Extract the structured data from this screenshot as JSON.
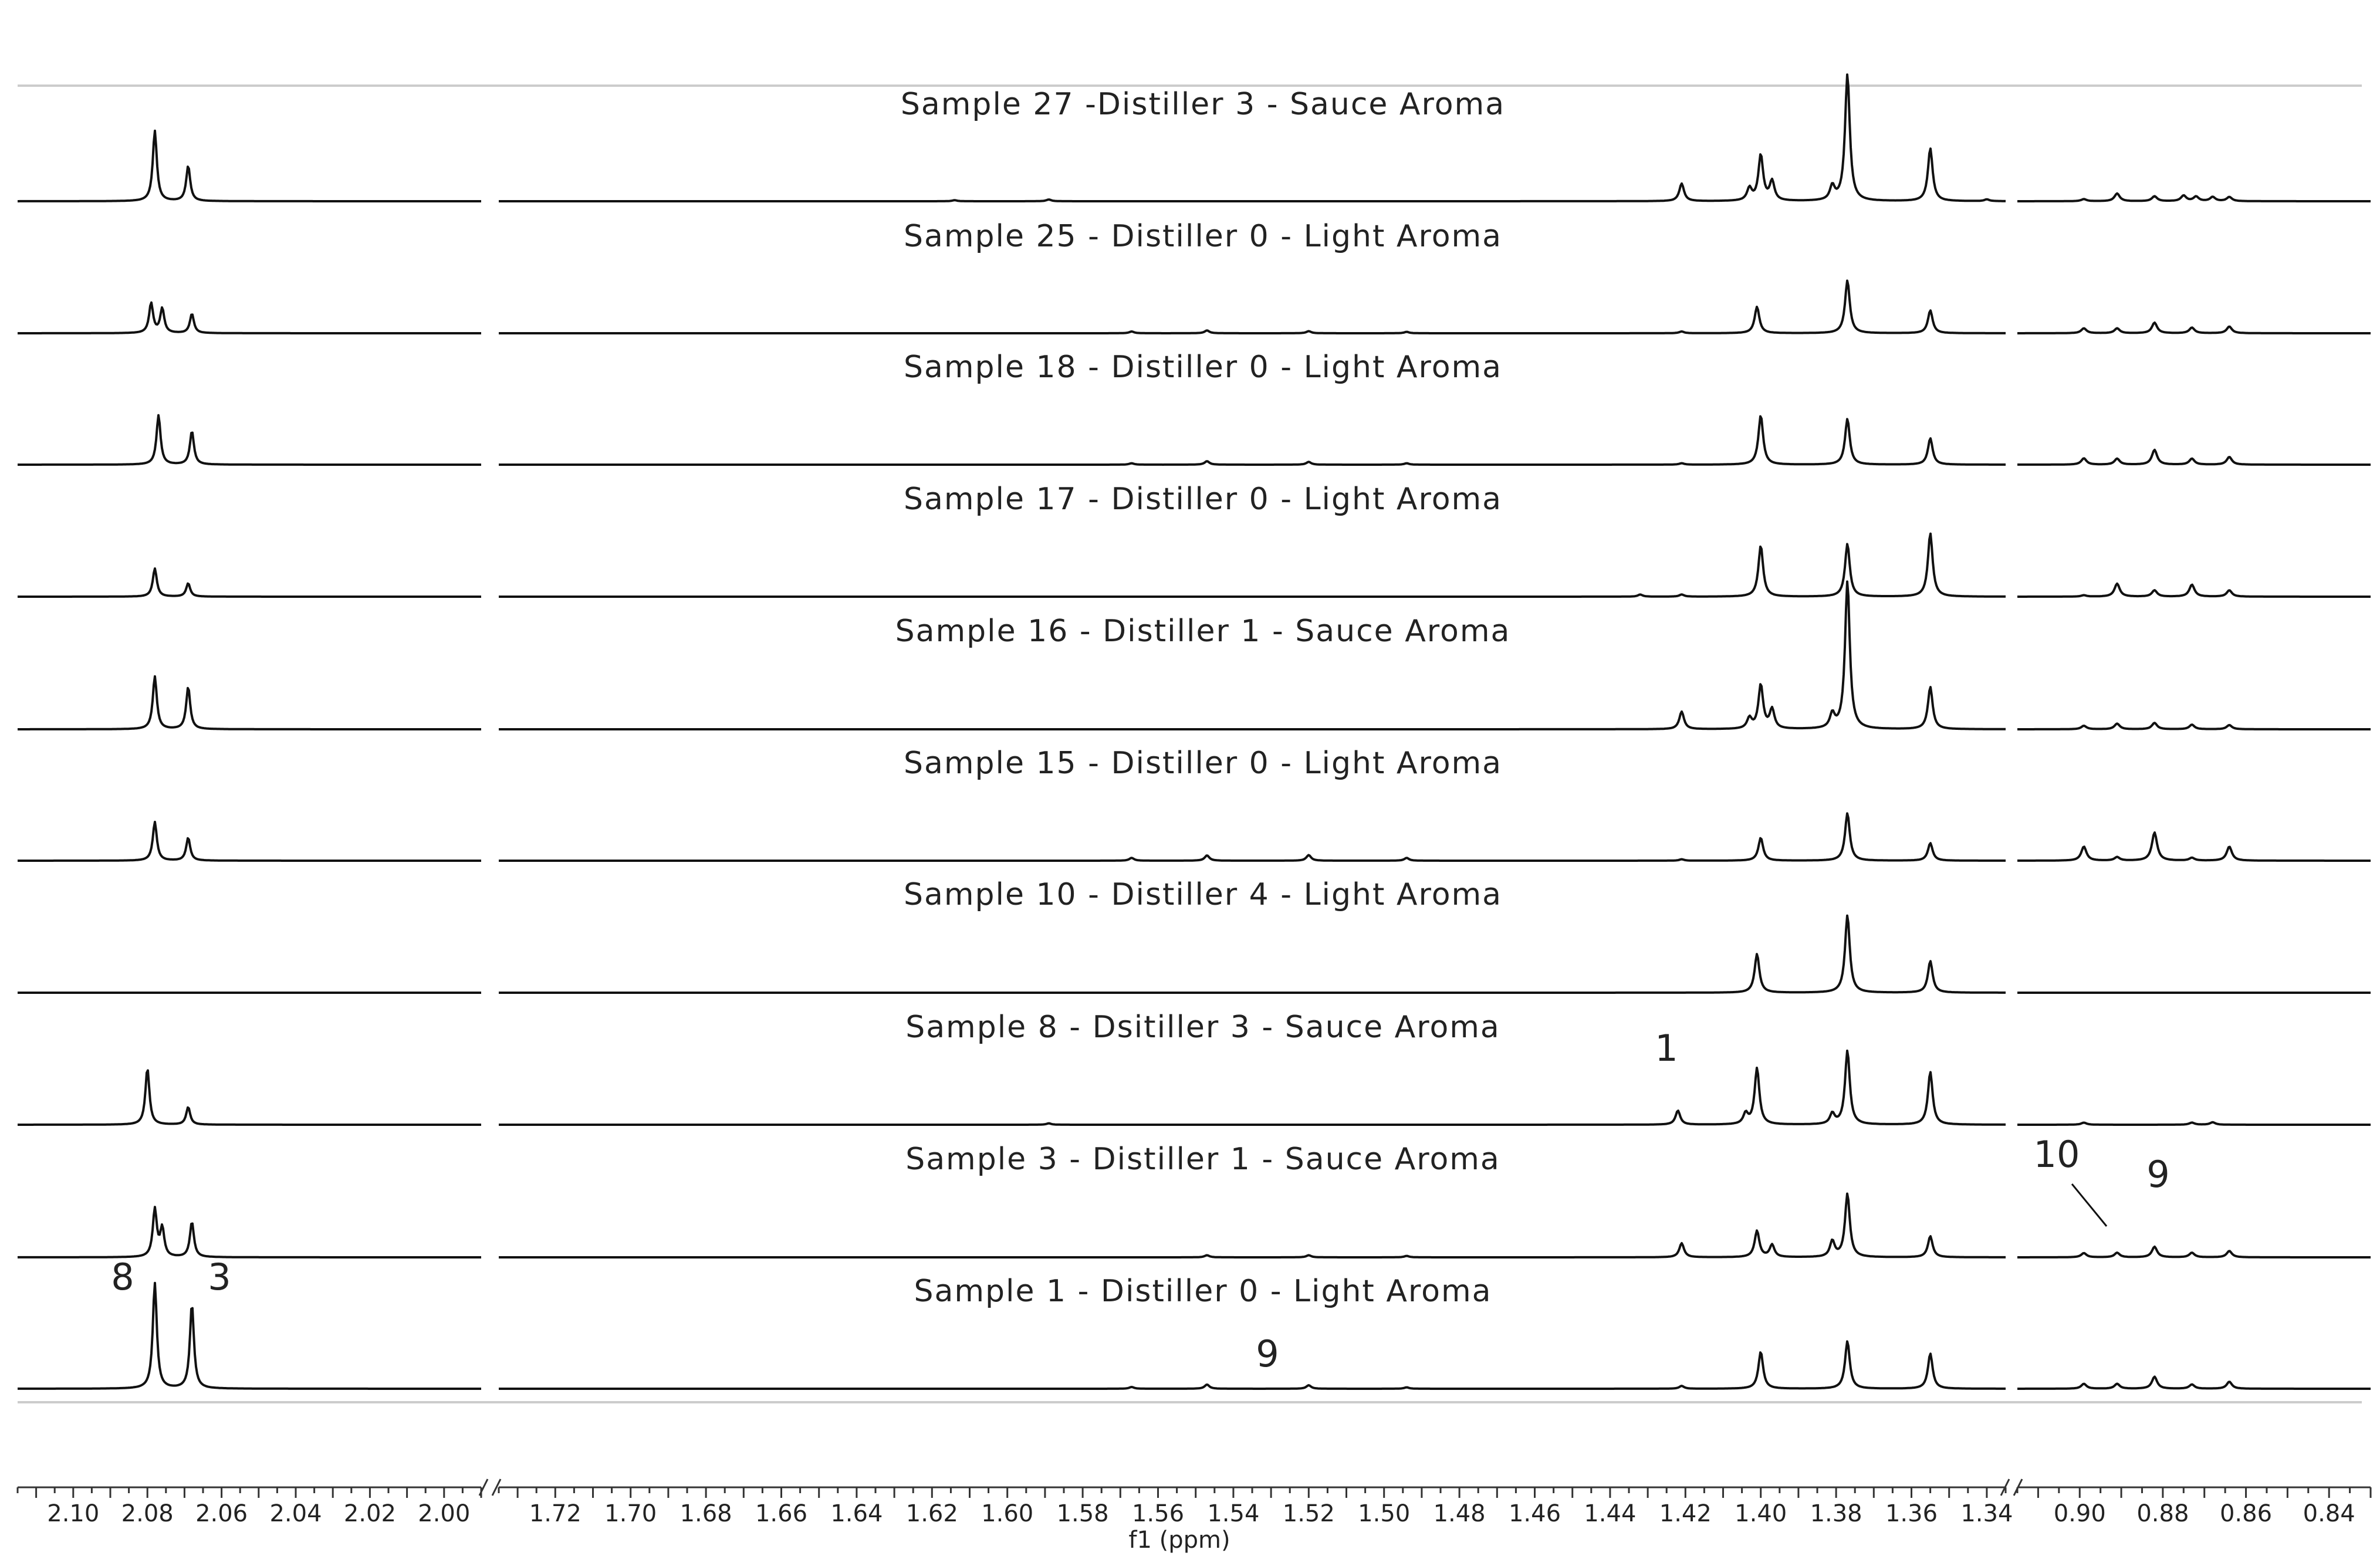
{
  "chart_data": {
    "type": "line",
    "title": "",
    "xlabel": "f1 (ppm)",
    "ylabel": "",
    "x_axis_direction": "descending",
    "axis_breaks": [
      [
        1.99,
        1.73
      ],
      [
        1.335,
        0.915
      ]
    ],
    "segments": [
      {
        "name": "left",
        "x_range": [
          2.115,
          1.99
        ],
        "ticks": [
          "2.10",
          "2.08",
          "2.06",
          "2.04",
          "2.02",
          "2.00"
        ]
      },
      {
        "name": "middle",
        "x_range": [
          1.735,
          1.335
        ],
        "ticks": [
          "1.72",
          "1.70",
          "1.68",
          "1.66",
          "1.64",
          "1.62",
          "1.60",
          "1.58",
          "1.56",
          "1.54",
          "1.52",
          "1.50",
          "1.48",
          "1.46",
          "1.44",
          "1.42",
          "1.40",
          "1.38",
          "1.36",
          "1.34"
        ]
      },
      {
        "name": "right",
        "x_range": [
          0.915,
          0.83
        ],
        "ticks": [
          "0.90",
          "0.88",
          "0.86",
          "0.84"
        ]
      }
    ],
    "series": [
      {
        "name": "Sample 27 -Distiller 3 - Sauce Aroma",
        "peaks": [
          [
            2.078,
            2.0
          ],
          [
            2.069,
            1.0
          ],
          [
            1.421,
            0.5
          ],
          [
            1.403,
            0.35
          ],
          [
            1.4,
            1.3
          ],
          [
            1.397,
            0.55
          ],
          [
            1.381,
            0.4
          ],
          [
            1.377,
            3.6
          ],
          [
            1.355,
            1.5
          ],
          [
            1.614,
            0.03
          ],
          [
            1.589,
            0.05
          ],
          [
            1.34,
            0.05
          ],
          [
            0.899,
            0.06
          ],
          [
            0.891,
            0.22
          ],
          [
            0.882,
            0.14
          ],
          [
            0.875,
            0.16
          ],
          [
            0.872,
            0.13
          ],
          [
            0.868,
            0.12
          ],
          [
            0.864,
            0.12
          ]
        ]
      },
      {
        "name": "Sample 25 - Distiller 0 - Light Aroma",
        "peaks": [
          [
            2.079,
            0.85
          ],
          [
            2.076,
            0.7
          ],
          [
            2.068,
            0.55
          ],
          [
            1.567,
            0.05
          ],
          [
            1.547,
            0.08
          ],
          [
            1.52,
            0.06
          ],
          [
            1.494,
            0.04
          ],
          [
            1.421,
            0.05
          ],
          [
            1.401,
            0.75
          ],
          [
            1.377,
            1.5
          ],
          [
            1.355,
            0.65
          ],
          [
            0.899,
            0.14
          ],
          [
            0.891,
            0.14
          ],
          [
            0.882,
            0.3
          ],
          [
            0.873,
            0.16
          ],
          [
            0.864,
            0.19
          ]
        ]
      },
      {
        "name": "Sample 18 - Distiller 0 - Light Aroma",
        "peaks": [
          [
            2.077,
            1.4
          ],
          [
            2.068,
            0.95
          ],
          [
            1.567,
            0.04
          ],
          [
            1.547,
            0.1
          ],
          [
            1.52,
            0.08
          ],
          [
            1.494,
            0.04
          ],
          [
            1.421,
            0.04
          ],
          [
            1.4,
            1.4
          ],
          [
            1.377,
            1.3
          ],
          [
            1.355,
            0.75
          ],
          [
            0.899,
            0.18
          ],
          [
            0.891,
            0.17
          ],
          [
            0.882,
            0.42
          ],
          [
            0.873,
            0.17
          ],
          [
            0.864,
            0.22
          ]
        ]
      },
      {
        "name": "Sample 17 - Distiller 0 - Light Aroma",
        "peaks": [
          [
            2.078,
            0.8
          ],
          [
            2.069,
            0.38
          ],
          [
            1.432,
            0.06
          ],
          [
            1.421,
            0.06
          ],
          [
            1.4,
            1.45
          ],
          [
            1.377,
            1.5
          ],
          [
            1.355,
            1.8
          ],
          [
            0.899,
            0.04
          ],
          [
            0.891,
            0.37
          ],
          [
            0.882,
            0.18
          ],
          [
            0.873,
            0.34
          ],
          [
            0.864,
            0.18
          ]
        ]
      },
      {
        "name": "Sample 16 - Distiller 1 - Sauce Aroma",
        "peaks": [
          [
            2.078,
            1.5
          ],
          [
            2.069,
            1.2
          ],
          [
            1.421,
            0.5
          ],
          [
            1.403,
            0.3
          ],
          [
            1.4,
            1.25
          ],
          [
            1.397,
            0.55
          ],
          [
            1.381,
            0.4
          ],
          [
            1.377,
            4.2
          ],
          [
            1.355,
            1.2
          ],
          [
            0.899,
            0.1
          ],
          [
            0.891,
            0.16
          ],
          [
            0.882,
            0.18
          ],
          [
            0.873,
            0.13
          ],
          [
            0.864,
            0.12
          ]
        ]
      },
      {
        "name": "Sample 15 - Distiller 0 - Light Aroma",
        "peaks": [
          [
            2.078,
            1.1
          ],
          [
            2.069,
            0.65
          ],
          [
            1.567,
            0.08
          ],
          [
            1.547,
            0.15
          ],
          [
            1.52,
            0.16
          ],
          [
            1.494,
            0.08
          ],
          [
            1.421,
            0.04
          ],
          [
            1.4,
            0.65
          ],
          [
            1.377,
            1.35
          ],
          [
            1.355,
            0.5
          ],
          [
            0.899,
            0.4
          ],
          [
            0.891,
            0.1
          ],
          [
            0.882,
            0.8
          ],
          [
            0.873,
            0.08
          ],
          [
            0.864,
            0.4
          ]
        ]
      },
      {
        "name": "Sample 10 - Distiller 4 - Light Aroma",
        "peaks": [
          [
            1.401,
            1.1
          ],
          [
            1.377,
            2.2
          ],
          [
            1.355,
            0.9
          ]
        ]
      },
      {
        "name": "Sample 8 - Dsitiller 3 - Sauce Aroma",
        "peaks": [
          [
            2.08,
            1.6
          ],
          [
            2.069,
            0.5
          ],
          [
            1.422,
            0.4
          ],
          [
            1.404,
            0.3
          ],
          [
            1.401,
            1.6
          ],
          [
            1.381,
            0.3
          ],
          [
            1.377,
            2.1
          ],
          [
            1.355,
            1.5
          ],
          [
            1.589,
            0.04
          ],
          [
            0.899,
            0.06
          ],
          [
            0.873,
            0.06
          ],
          [
            0.868,
            0.07
          ]
        ]
      },
      {
        "name": "Sample 3 - Distiller 1 - Sauce Aroma",
        "peaks": [
          [
            2.078,
            1.35
          ],
          [
            2.076,
            0.8
          ],
          [
            2.068,
            1.0
          ],
          [
            1.547,
            0.06
          ],
          [
            1.52,
            0.06
          ],
          [
            1.494,
            0.04
          ],
          [
            1.421,
            0.4
          ],
          [
            1.401,
            0.75
          ],
          [
            1.397,
            0.35
          ],
          [
            1.381,
            0.45
          ],
          [
            1.377,
            1.8
          ],
          [
            1.355,
            0.6
          ],
          [
            0.899,
            0.12
          ],
          [
            0.891,
            0.13
          ],
          [
            0.882,
            0.3
          ],
          [
            0.873,
            0.13
          ],
          [
            0.864,
            0.18
          ]
        ]
      },
      {
        "name": "Sample 1 - Distiller 0 - Light Aroma",
        "peaks": [
          [
            2.078,
            3.0
          ],
          [
            2.068,
            2.4
          ],
          [
            1.567,
            0.05
          ],
          [
            1.547,
            0.12
          ],
          [
            1.52,
            0.1
          ],
          [
            1.494,
            0.04
          ],
          [
            1.421,
            0.08
          ],
          [
            1.4,
            1.05
          ],
          [
            1.377,
            1.35
          ],
          [
            1.355,
            1.0
          ],
          [
            0.899,
            0.14
          ],
          [
            0.891,
            0.14
          ],
          [
            0.882,
            0.34
          ],
          [
            0.873,
            0.12
          ],
          [
            0.864,
            0.2
          ]
        ]
      }
    ],
    "annotations": [
      {
        "text": "1",
        "series": "Sample 8 - Dsitiller 3 - Sauce Aroma"
      },
      {
        "text": "10",
        "series": "Sample 3 - Distiller 1 - Sauce Aroma"
      },
      {
        "text": "9",
        "series": "Sample 3 - Distiller 1 - Sauce Aroma"
      },
      {
        "text": "8",
        "series": "Sample 1 - Distiller 0 - Light Aroma"
      },
      {
        "text": "3",
        "series": "Sample 1 - Distiller 0 - Light Aroma"
      },
      {
        "text": "9",
        "series": "Sample 1 - Distiller 0 - Light Aroma"
      }
    ],
    "grid": false,
    "legend": "none",
    "line_color": "#111111"
  }
}
